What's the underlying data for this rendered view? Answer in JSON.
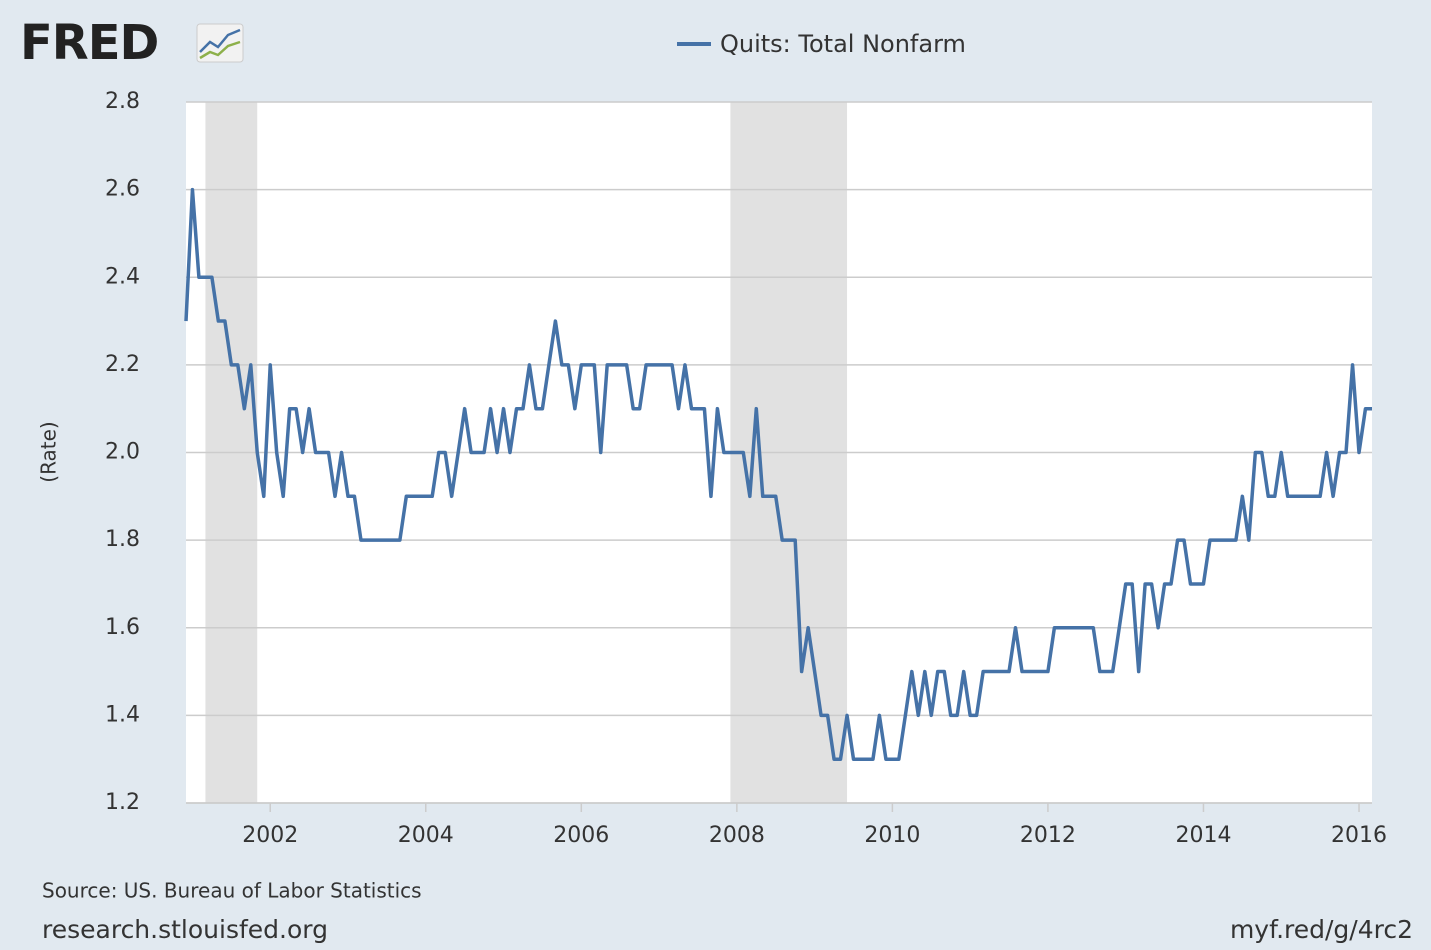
{
  "chart_data": {
    "type": "line",
    "logo": "FRED",
    "y_label": "(Rate)",
    "source": "Source: US. Bureau of Labor Statistics",
    "site": "research.stlouisfed.org",
    "short_link": "myf.red/g/4rc2",
    "x": [
      2000.917,
      2001,
      2001.083,
      2001.167,
      2001.25,
      2001.333,
      2001.417,
      2001.5,
      2001.583,
      2001.667,
      2001.75,
      2001.833,
      2001.917,
      2002,
      2002.083,
      2002.167,
      2002.25,
      2002.333,
      2002.417,
      2002.5,
      2002.583,
      2002.667,
      2002.75,
      2002.833,
      2002.917,
      2003,
      2003.083,
      2003.167,
      2003.25,
      2003.333,
      2003.417,
      2003.5,
      2003.583,
      2003.667,
      2003.75,
      2003.833,
      2003.917,
      2004,
      2004.083,
      2004.167,
      2004.25,
      2004.333,
      2004.417,
      2004.5,
      2004.583,
      2004.667,
      2004.75,
      2004.833,
      2004.917,
      2005,
      2005.083,
      2005.167,
      2005.25,
      2005.333,
      2005.417,
      2005.5,
      2005.583,
      2005.667,
      2005.75,
      2005.833,
      2005.917,
      2006,
      2006.083,
      2006.167,
      2006.25,
      2006.333,
      2006.417,
      2006.5,
      2006.583,
      2006.667,
      2006.75,
      2006.833,
      2006.917,
      2007,
      2007.083,
      2007.167,
      2007.25,
      2007.333,
      2007.417,
      2007.5,
      2007.583,
      2007.667,
      2007.75,
      2007.833,
      2007.917,
      2008,
      2008.083,
      2008.167,
      2008.25,
      2008.333,
      2008.417,
      2008.5,
      2008.583,
      2008.667,
      2008.75,
      2008.833,
      2008.917,
      2009,
      2009.083,
      2009.167,
      2009.25,
      2009.333,
      2009.417,
      2009.5,
      2009.583,
      2009.667,
      2009.75,
      2009.833,
      2009.917,
      2010,
      2010.083,
      2010.167,
      2010.25,
      2010.333,
      2010.417,
      2010.5,
      2010.583,
      2010.667,
      2010.75,
      2010.833,
      2010.917,
      2011,
      2011.083,
      2011.167,
      2011.25,
      2011.333,
      2011.417,
      2011.5,
      2011.583,
      2011.667,
      2011.75,
      2011.833,
      2011.917,
      2012,
      2012.083,
      2012.167,
      2012.25,
      2012.333,
      2012.417,
      2012.5,
      2012.583,
      2012.667,
      2012.75,
      2012.833,
      2012.917,
      2013,
      2013.083,
      2013.167,
      2013.25,
      2013.333,
      2013.417,
      2013.5,
      2013.583,
      2013.667,
      2013.75,
      2013.833,
      2013.917,
      2014,
      2014.083,
      2014.167,
      2014.25,
      2014.333,
      2014.417,
      2014.5,
      2014.583,
      2014.667,
      2014.75,
      2014.833,
      2014.917,
      2015,
      2015.083,
      2015.167,
      2015.25,
      2015.333,
      2015.417,
      2015.5,
      2015.583,
      2015.667,
      2015.75,
      2015.833,
      2015.917,
      2016,
      2016.083,
      2016.167
    ],
    "series": [
      {
        "name": "Quits: Total Nonfarm",
        "color": "#4572a7",
        "values": [
          2.3,
          2.6,
          2.4,
          2.4,
          2.4,
          2.3,
          2.3,
          2.2,
          2.2,
          2.1,
          2.2,
          2.0,
          1.9,
          2.2,
          2.0,
          1.9,
          2.1,
          2.1,
          2.0,
          2.1,
          2.0,
          2.0,
          2.0,
          1.9,
          2.0,
          1.9,
          1.9,
          1.8,
          1.8,
          1.8,
          1.8,
          1.8,
          1.8,
          1.8,
          1.9,
          1.9,
          1.9,
          1.9,
          1.9,
          2.0,
          2.0,
          1.9,
          2.0,
          2.1,
          2.0,
          2.0,
          2.0,
          2.1,
          2.0,
          2.1,
          2.0,
          2.1,
          2.1,
          2.2,
          2.1,
          2.1,
          2.2,
          2.3,
          2.2,
          2.2,
          2.1,
          2.2,
          2.2,
          2.2,
          2.0,
          2.2,
          2.2,
          2.2,
          2.2,
          2.1,
          2.1,
          2.2,
          2.2,
          2.2,
          2.2,
          2.2,
          2.1,
          2.2,
          2.1,
          2.1,
          2.1,
          1.9,
          2.1,
          2.0,
          2.0,
          2.0,
          2.0,
          1.9,
          2.1,
          1.9,
          1.9,
          1.9,
          1.8,
          1.8,
          1.8,
          1.5,
          1.6,
          1.5,
          1.4,
          1.4,
          1.3,
          1.3,
          1.4,
          1.3,
          1.3,
          1.3,
          1.3,
          1.4,
          1.3,
          1.3,
          1.3,
          1.4,
          1.5,
          1.4,
          1.5,
          1.4,
          1.5,
          1.5,
          1.4,
          1.4,
          1.5,
          1.4,
          1.4,
          1.5,
          1.5,
          1.5,
          1.5,
          1.5,
          1.6,
          1.5,
          1.5,
          1.5,
          1.5,
          1.5,
          1.6,
          1.6,
          1.6,
          1.6,
          1.6,
          1.6,
          1.6,
          1.5,
          1.5,
          1.5,
          1.6,
          1.7,
          1.7,
          1.5,
          1.7,
          1.7,
          1.6,
          1.7,
          1.7,
          1.8,
          1.8,
          1.7,
          1.7,
          1.7,
          1.8,
          1.8,
          1.8,
          1.8,
          1.8,
          1.9,
          1.8,
          2.0,
          2.0,
          1.9,
          1.9,
          2.0,
          1.9,
          1.9,
          1.9,
          1.9,
          1.9,
          1.9,
          2.0,
          1.9,
          2.0,
          2.0,
          2.2,
          2.0,
          2.1,
          2.1
        ]
      }
    ],
    "recessions": [
      [
        2001.167,
        2001.833
      ],
      [
        2007.917,
        2009.417
      ]
    ],
    "recession_color": "#e1e1e1",
    "xlim": [
      2000.917,
      2016.167
    ],
    "xticks": [
      2002,
      2004,
      2006,
      2008,
      2010,
      2012,
      2014,
      2016
    ],
    "ylim": [
      1.2,
      2.8
    ],
    "yticks": [
      1.2,
      1.4,
      1.6,
      1.8,
      {
        "value": 2,
        "label": "2.0"
      },
      2.2,
      2.4,
      2.6,
      2.8
    ],
    "grid": true
  }
}
